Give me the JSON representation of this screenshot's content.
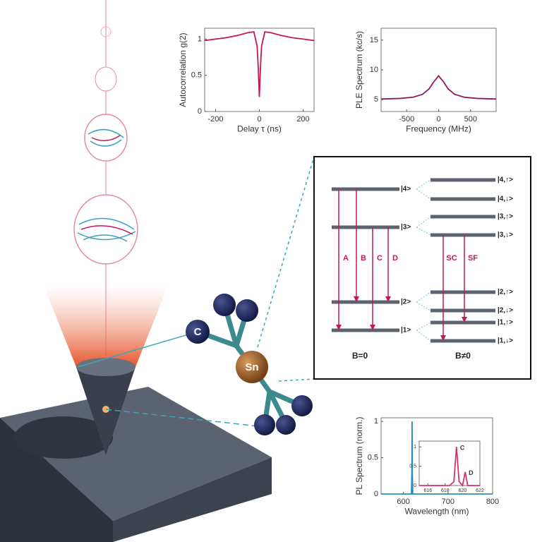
{
  "chart_data": [
    {
      "type": "line",
      "xlabel": "Delay τ (ns)",
      "ylabel": "Autocorrelation g(2)",
      "x": [
        -250,
        -200,
        -150,
        -100,
        -50,
        -25,
        -10,
        -5,
        0,
        5,
        10,
        25,
        50,
        100,
        150,
        200,
        250
      ],
      "series": [
        {
          "color": "#c2185b",
          "values": [
            0.98,
            1.0,
            1.02,
            1.05,
            1.09,
            1.1,
            0.9,
            0.6,
            0.2,
            0.6,
            0.9,
            1.1,
            1.09,
            1.05,
            1.02,
            1.0,
            0.98
          ]
        }
      ],
      "xlim": [
        -250,
        250
      ],
      "xticks": [
        -200,
        0,
        200
      ],
      "ylim": [
        0,
        1.15
      ],
      "yticks": [
        0,
        0.5,
        1
      ]
    },
    {
      "type": "line",
      "xlabel": "Frequency (MHz)",
      "ylabel": "PLE Spectrum (kc/s)",
      "x": [
        -900,
        -600,
        -400,
        -250,
        -150,
        -75,
        0,
        75,
        150,
        250,
        400,
        600,
        900
      ],
      "series": [
        {
          "color": "#8e1b5e",
          "values": [
            5.1,
            5.2,
            5.4,
            5.9,
            6.8,
            8.0,
            9.0,
            8.0,
            6.8,
            5.9,
            5.4,
            5.2,
            5.1
          ]
        }
      ],
      "xlim": [
        -900,
        900
      ],
      "xticks": [
        -500,
        0,
        500
      ],
      "ylim": [
        3,
        17
      ],
      "yticks": [
        5,
        10,
        15
      ]
    },
    {
      "type": "line",
      "xlabel": "Wavelength (nm)",
      "ylabel": "PL Spectrum (norm.)",
      "x": [
        550,
        615,
        618,
        619,
        619.5,
        620,
        621,
        625,
        800
      ],
      "series": [
        {
          "color": "#2b8cbe",
          "values": [
            0,
            0,
            0,
            0.3,
            1,
            0.3,
            0,
            0,
            0
          ]
        }
      ],
      "xlim": [
        550,
        800
      ],
      "xticks": [
        600,
        700,
        800
      ],
      "ylim": [
        0,
        1.05
      ],
      "yticks": [
        0,
        0.5,
        1
      ],
      "inset": {
        "type": "line",
        "x": [
          615,
          618.5,
          619,
          619.3,
          619.6,
          620,
          620.3,
          620.6,
          622
        ],
        "series": [
          {
            "color": "#d6336c",
            "values": [
              0,
              0,
              0.1,
              1,
              0.1,
              0,
              0.35,
              0,
              0
            ]
          }
        ],
        "xlim": [
          615,
          622
        ],
        "xticks": [
          616,
          618,
          620,
          622
        ],
        "ylim": [
          0,
          1.15
        ],
        "yticks": [
          0,
          0.5,
          1
        ],
        "annotations": [
          "C",
          "D"
        ]
      }
    }
  ],
  "level_diagram": {
    "left_levels": [
      "|4>",
      "|3>",
      "|2>",
      "|1>"
    ],
    "right_levels": [
      "|4,↑>",
      "|4,↓>",
      "|3,↑>",
      "|3,↓>",
      "|2,↑>",
      "|2,↓>",
      "|1,↑>",
      "|1,↓>"
    ],
    "transitions": [
      "A",
      "B",
      "C",
      "D",
      "SC",
      "SF"
    ],
    "left_caption": "B=0",
    "right_caption": "B≠0"
  },
  "molecule": {
    "carbon": "C",
    "tin": "Sn"
  }
}
